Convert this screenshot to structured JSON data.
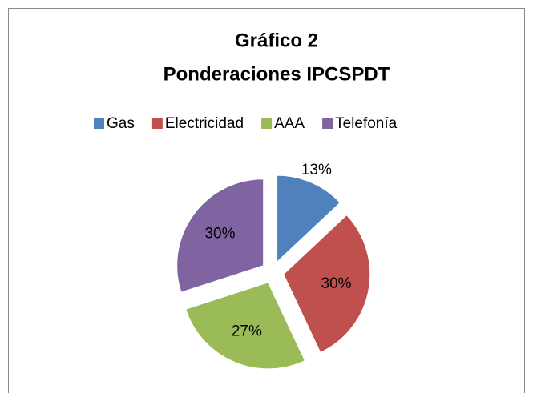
{
  "chart_data": {
    "type": "pie",
    "title": [
      "Gráfico 2",
      "Ponderaciones IPCSPDT"
    ],
    "categories": [
      "Gas",
      "Electricidad",
      "AAA",
      "Telefonía"
    ],
    "values": [
      13,
      30,
      27,
      30
    ],
    "value_labels": [
      "13%",
      "30%",
      "27%",
      "30%"
    ],
    "colors": [
      "#4f81bd",
      "#c0504d",
      "#9bbb59",
      "#8064a2"
    ],
    "legend": "top"
  }
}
